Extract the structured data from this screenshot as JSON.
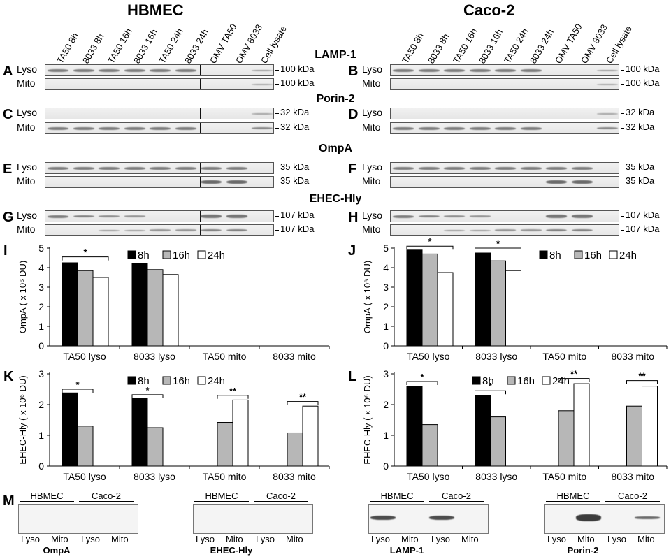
{
  "titles": {
    "left": "HBMEC",
    "right": "Caco-2"
  },
  "lanes": [
    "TA50 8h",
    "8033 8h",
    "TA50 16h",
    "8033 16h",
    "TA50 24h",
    "8033 24h",
    "OMV TA50",
    "OMV 8033",
    "Cell lysate"
  ],
  "blots": [
    {
      "protein": "LAMP-1",
      "left": {
        "letter": "A"
      },
      "right": {
        "letter": "B"
      },
      "rows": [
        {
          "label": "Lyso",
          "kda": "100 kDa",
          "kda_right": "100 kDa",
          "left_bands": [
            1,
            1,
            1,
            1,
            1,
            1,
            0,
            0,
            0.5
          ],
          "right_bands": [
            1,
            1,
            1,
            1,
            1,
            1,
            0,
            0,
            0.5
          ]
        },
        {
          "label": "Mito",
          "kda": "100 kDa",
          "kda_right": "100 kDa",
          "left_bands": [
            0,
            0,
            0,
            0,
            0,
            0,
            0,
            0,
            0.3
          ],
          "right_bands": [
            0,
            0,
            0,
            0,
            0,
            0,
            0,
            0,
            0.3
          ]
        }
      ]
    },
    {
      "protein": "Porin-2",
      "left": {
        "letter": "C"
      },
      "right": {
        "letter": "D"
      },
      "rows": [
        {
          "label": "Lyso",
          "kda": "32 kDa",
          "kda_right": "32 kDa",
          "left_bands": [
            0,
            0,
            0,
            0,
            0,
            0,
            0,
            0,
            0.4
          ],
          "right_bands": [
            0,
            0,
            0,
            0,
            0,
            0,
            0,
            0,
            0.4
          ]
        },
        {
          "label": "Mito",
          "kda": "32 kDa",
          "kda_right": "32 kDa",
          "left_bands": [
            1,
            1,
            1,
            1,
            1,
            1,
            0,
            0,
            0.8
          ],
          "right_bands": [
            1,
            1,
            1,
            1,
            1,
            1,
            0,
            0,
            0.8
          ]
        }
      ]
    },
    {
      "protein": "OmpA",
      "left": {
        "letter": "E"
      },
      "right": {
        "letter": "F"
      },
      "rows": [
        {
          "label": "Lyso",
          "kda": "35 kDa",
          "kda_right": "35 kDa",
          "left_bands": [
            1,
            1,
            1,
            1,
            1,
            1,
            1,
            1,
            0
          ],
          "right_bands": [
            1,
            1,
            1,
            1,
            1,
            1,
            1,
            1,
            0
          ]
        },
        {
          "label": "Mito",
          "kda": "35 kDa",
          "kda_right": "35 kDa",
          "left_bands": [
            0,
            0,
            0,
            0,
            0,
            0,
            1.4,
            1.4,
            0
          ],
          "right_bands": [
            0,
            0,
            0,
            0,
            0,
            0,
            1.4,
            1.4,
            0
          ]
        }
      ]
    },
    {
      "protein": "EHEC-Hly",
      "left": {
        "letter": "G"
      },
      "right": {
        "letter": "H"
      },
      "rows": [
        {
          "label": "Lyso",
          "kda": "107 kDa",
          "kda_right": "107 kDa",
          "left_bands": [
            1,
            0.9,
            0.7,
            0.6,
            0,
            0,
            1.1,
            1.1,
            0
          ],
          "right_bands": [
            1,
            0.9,
            0.7,
            0.6,
            0,
            0,
            1.1,
            1.1,
            0
          ]
        },
        {
          "label": "Mito",
          "kda": "107 kDa",
          "kda_right": "107 kDa",
          "left_bands": [
            0,
            0,
            0.5,
            0.5,
            0.6,
            0.6,
            0.9,
            0.9,
            0
          ],
          "right_bands": [
            0,
            0,
            0.5,
            0.5,
            0.6,
            0.6,
            0.9,
            0.9,
            0
          ]
        }
      ]
    }
  ],
  "chart_data": [
    {
      "type": "bar",
      "panel": "I",
      "ylabel": "OmpA ( x 10⁶ DU)",
      "ylim": [
        0,
        5
      ],
      "yticks": [
        0,
        1,
        2,
        3,
        4,
        5
      ],
      "categories": [
        "TA50 lyso",
        "8033 lyso",
        "TA50 mito",
        "8033 mito"
      ],
      "series": [
        {
          "name": "8h",
          "values": [
            4.25,
            4.2,
            0,
            0
          ]
        },
        {
          "name": "16h",
          "values": [
            3.85,
            3.9,
            0,
            0
          ]
        },
        {
          "name": "24h",
          "values": [
            3.5,
            3.65,
            0,
            0
          ]
        }
      ],
      "significance": [
        {
          "category": 0,
          "from": 0,
          "to": 2,
          "y": 4.55,
          "label": "*"
        }
      ],
      "legend": "top"
    },
    {
      "type": "bar",
      "panel": "J",
      "ylabel": "OmpA ( x 10⁶ DU)",
      "ylim": [
        0,
        5
      ],
      "yticks": [
        0,
        1,
        2,
        3,
        4,
        5
      ],
      "categories": [
        "TA50 lyso",
        "8033 lyso",
        "TA50 mito",
        "8033 mito"
      ],
      "series": [
        {
          "name": "8h",
          "values": [
            4.9,
            4.75,
            0,
            0
          ]
        },
        {
          "name": "16h",
          "values": [
            4.7,
            4.35,
            0,
            0
          ]
        },
        {
          "name": "24h",
          "values": [
            3.75,
            3.85,
            0,
            0
          ]
        }
      ],
      "significance": [
        {
          "category": 0,
          "from": 0,
          "to": 2,
          "y": 5.1,
          "label": "*"
        },
        {
          "category": 1,
          "from": 0,
          "to": 2,
          "y": 5.0,
          "label": "*"
        }
      ],
      "legend": "top-right"
    },
    {
      "type": "bar",
      "panel": "K",
      "ylabel": "EHEC-Hly ( x 10⁶ DU)",
      "ylim": [
        0,
        3
      ],
      "yticks": [
        0,
        1,
        2,
        3
      ],
      "categories": [
        "TA50 lyso",
        "8033 lyso",
        "TA50 mito",
        "8033 mito"
      ],
      "series": [
        {
          "name": "8h",
          "values": [
            2.38,
            2.2,
            0,
            0
          ]
        },
        {
          "name": "16h",
          "values": [
            1.3,
            1.25,
            1.42,
            1.08
          ]
        },
        {
          "name": "24h",
          "values": [
            0,
            0,
            2.15,
            1.95
          ]
        }
      ],
      "significance": [
        {
          "category": 0,
          "from": 0,
          "to": 1,
          "y": 2.5,
          "label": "*"
        },
        {
          "category": 1,
          "from": 0,
          "to": 1,
          "y": 2.32,
          "label": "*"
        },
        {
          "category": 2,
          "from": 1,
          "to": 2,
          "y": 2.3,
          "label": "**"
        },
        {
          "category": 3,
          "from": 1,
          "to": 2,
          "y": 2.1,
          "label": "**"
        }
      ],
      "legend": "top"
    },
    {
      "type": "bar",
      "panel": "L",
      "ylabel": "EHEC-Hly ( x 10⁶ DU)",
      "ylim": [
        0,
        3
      ],
      "yticks": [
        0,
        1,
        2,
        3
      ],
      "categories": [
        "TA50 lyso",
        "8033 lyso",
        "TA50 mito",
        "8033 mito"
      ],
      "series": [
        {
          "name": "8h",
          "values": [
            2.58,
            2.3,
            0,
            0
          ]
        },
        {
          "name": "16h",
          "values": [
            1.35,
            1.6,
            1.8,
            1.95
          ]
        },
        {
          "name": "24h",
          "values": [
            0,
            0,
            2.68,
            2.6
          ]
        }
      ],
      "significance": [
        {
          "category": 0,
          "from": 0,
          "to": 1,
          "y": 2.75,
          "label": "*"
        },
        {
          "category": 1,
          "from": 0,
          "to": 1,
          "y": 2.45,
          "label": "*"
        },
        {
          "category": 2,
          "from": 1,
          "to": 2,
          "y": 2.85,
          "label": "**"
        },
        {
          "category": 3,
          "from": 1,
          "to": 2,
          "y": 2.78,
          "label": "**"
        }
      ],
      "legend": "top"
    }
  ],
  "panel_m": {
    "letter": "M",
    "groups": [
      "HBMEC",
      "Caco-2"
    ],
    "lane_labels": [
      "Lyso",
      "Mito",
      "Lyso",
      "Mito"
    ],
    "blots": [
      {
        "name": "OmpA",
        "bands": [
          0,
          0,
          0,
          0
        ]
      },
      {
        "name": "EHEC-Hly",
        "bands": [
          0,
          0,
          0,
          0
        ]
      },
      {
        "name": "LAMP-1",
        "bands": [
          1,
          0,
          1,
          0
        ]
      },
      {
        "name": "Porin-2",
        "bands": [
          0,
          1.6,
          0,
          0.6
        ]
      }
    ]
  },
  "colors": {
    "8h": "#000000",
    "16h": "#b7b7b7",
    "24h": "#ffffff",
    "band": "#6b6b6b"
  }
}
